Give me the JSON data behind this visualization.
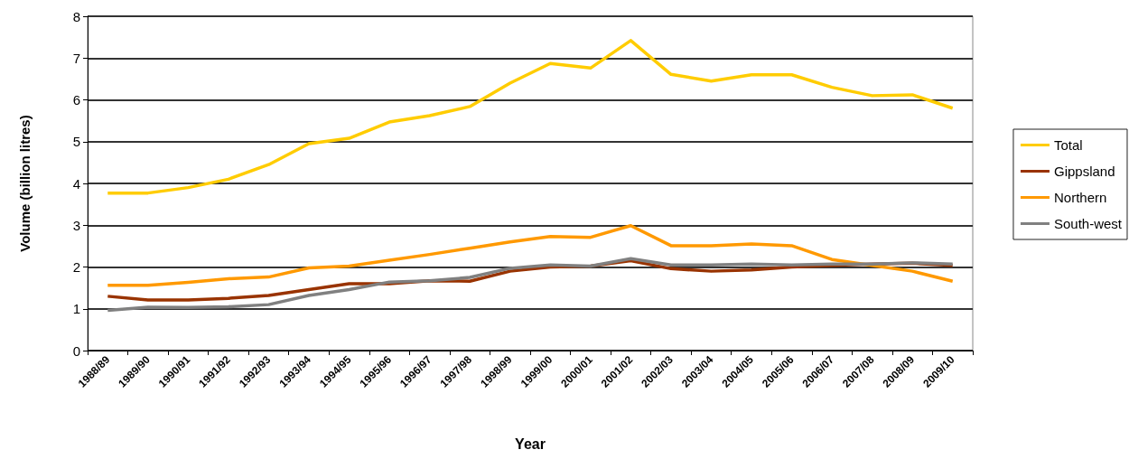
{
  "chart_data": {
    "type": "line",
    "xlabel": "Year",
    "ylabel": "Volume (billion litres)",
    "categories": [
      "1988/89",
      "1989/90",
      "1990/91",
      "1991/92",
      "1992/93",
      "1993/94",
      "1994/95",
      "1995/96",
      "1996/97",
      "1997/98",
      "1998/99",
      "1999/00",
      "2000/01",
      "2001/02",
      "2002/03",
      "2003/04",
      "2004/05",
      "2005/06",
      "2006/07",
      "2007/08",
      "2008/09",
      "2009/10"
    ],
    "series": [
      {
        "name": "Total",
        "color": "#ffcc00",
        "values": [
          3.77,
          3.77,
          3.9,
          4.1,
          4.45,
          4.95,
          5.08,
          5.47,
          5.62,
          5.84,
          6.4,
          6.87,
          6.76,
          7.42,
          6.61,
          6.45,
          6.6,
          6.6,
          6.3,
          6.1,
          6.12,
          5.8
        ]
      },
      {
        "name": "Gippsland",
        "color": "#993300",
        "values": [
          1.3,
          1.21,
          1.21,
          1.25,
          1.32,
          1.46,
          1.6,
          1.6,
          1.67,
          1.66,
          1.9,
          2.0,
          2.02,
          2.15,
          1.96,
          1.9,
          1.93,
          2.0,
          2.04,
          2.07,
          2.09,
          2.04
        ]
      },
      {
        "name": "Northern",
        "color": "#ff9900",
        "values": [
          1.56,
          1.56,
          1.63,
          1.72,
          1.76,
          1.98,
          2.02,
          2.16,
          2.3,
          2.45,
          2.6,
          2.73,
          2.71,
          2.99,
          2.51,
          2.51,
          2.55,
          2.51,
          2.18,
          2.04,
          1.9,
          1.66
        ]
      },
      {
        "name": "South-west",
        "color": "#808080",
        "values": [
          0.96,
          1.04,
          1.03,
          1.05,
          1.1,
          1.32,
          1.46,
          1.64,
          1.67,
          1.75,
          1.97,
          2.05,
          2.02,
          2.2,
          2.05,
          2.05,
          2.07,
          2.05,
          2.07,
          2.07,
          2.1,
          2.07
        ]
      }
    ],
    "ylim": [
      0,
      8
    ],
    "yticks": [
      0,
      1,
      2,
      3,
      4,
      5,
      6,
      7,
      8
    ],
    "grid": "y",
    "legend": "right",
    "marker": "none",
    "line_style": "solid"
  }
}
